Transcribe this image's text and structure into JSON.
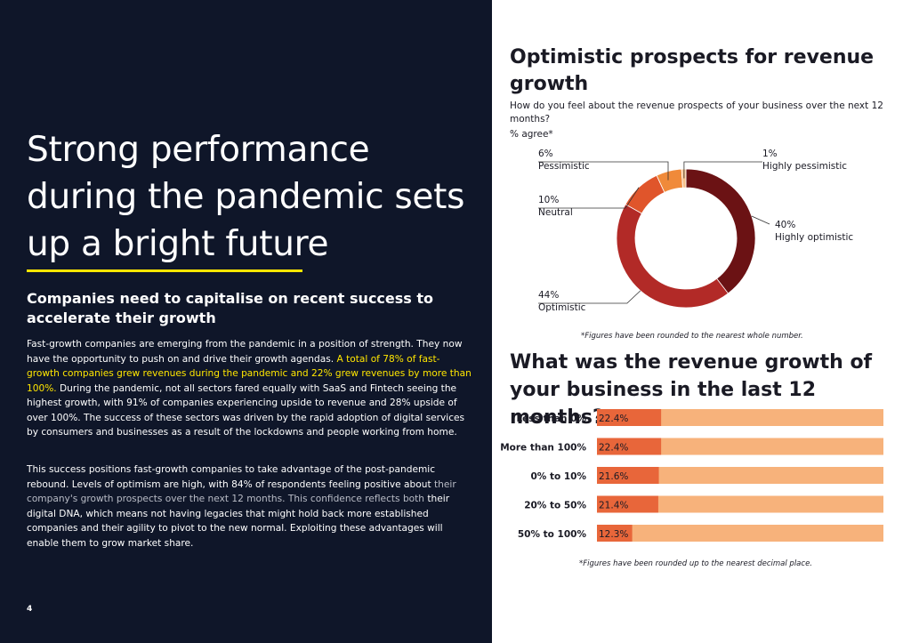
{
  "article": {
    "headline": "Strong performance during the pandemic sets up a bright future",
    "subheading": "Companies need to capitalise on recent success to accelerate their growth",
    "p1_start": "Fast-growth companies are emerging from the pandemic in a position of strength. They now have the opportunity to push on and drive their growth agendas. ",
    "p1_highlight": "A total of 78% of fast-growth companies grew revenues during the pandemic and 22% grew revenues by more than 100%.",
    "p1_end": " During the pandemic, not all sectors fared equally with SaaS and Fintech seeing the highest growth, with 91% of companies experiencing upside to revenue and 28% upside of over 100%. The success of these sectors was driven by the rapid adoption of digital services by consumers and businesses as a result of the lockdowns and people working from home.",
    "p2_start": "This success positions fast-growth companies to take advantage of the post-pandemic rebound.  Levels of optimism are high, with 84% of respondents feeling positive about ",
    "p2_muted": "their company's growth prospects over the next 12 months. This confidence reflects both",
    "p2_end": " their digital DNA, which means not having legacies that might hold back more established companies and their agility to pivot to the new normal. Exploiting these advantages will enable them to grow market share.",
    "page_number": "4"
  },
  "colors": {
    "background_left": "#0f1629",
    "accent_yellow": "#ffe600",
    "highly_optimistic": "#6b1214",
    "optimistic": "#b22a27",
    "neutral": "#e0552b",
    "pessimistic": "#f08a3a",
    "highly_pessimistic": "#f7c08a",
    "bar_fill": "#e8663a",
    "bar_track": "#f7b27b"
  },
  "chart_data": [
    {
      "type": "pie",
      "title": "Optimistic prospects for revenue growth",
      "subtitle": "How do you feel about the revenue prospects of your business over the next 12 months?",
      "unit_label": "% agree*",
      "donut": true,
      "slices": [
        {
          "name": "Highly optimistic",
          "value": 40,
          "label": "40%"
        },
        {
          "name": "Optimistic",
          "value": 44,
          "label": "44%"
        },
        {
          "name": "Neutral",
          "value": 10,
          "label": "10%"
        },
        {
          "name": "Pessimistic",
          "value": 6,
          "label": "6%"
        },
        {
          "name": "Highly pessimistic",
          "value": 1,
          "label": "1%"
        }
      ],
      "footnote": "*Figures have been rounded to the nearest whole number."
    },
    {
      "type": "bar",
      "orientation": "horizontal",
      "title": "What was the revenue growth of your business in the last 12 months?",
      "categories": [
        "Less than 0%",
        "More than 100%",
        "0% to 10%",
        "20% to 50%",
        "50% to 100%"
      ],
      "values": [
        22.4,
        22.4,
        21.6,
        21.4,
        12.3
      ],
      "value_labels": [
        "22.4%",
        "22.4%",
        "21.6%",
        "21.4%",
        "12.3%"
      ],
      "xlim": [
        0,
        100
      ],
      "footnote": "*Figures have been rounded up to the nearest decimal place."
    }
  ]
}
